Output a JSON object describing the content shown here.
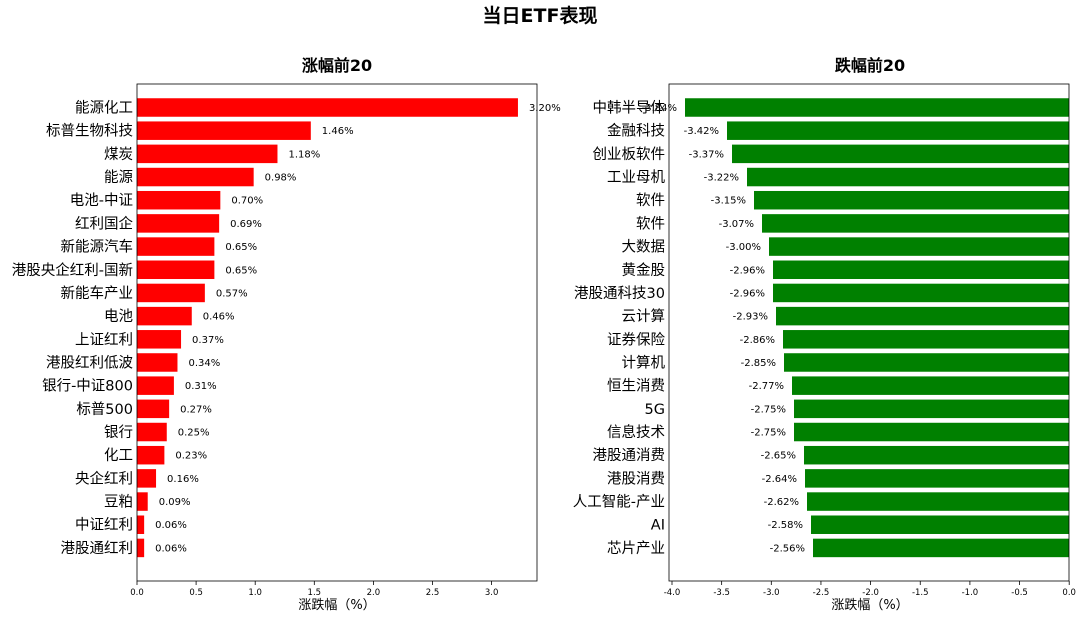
{
  "suptitle": "当日ETF表现",
  "chart_data": [
    {
      "type": "bar",
      "orientation": "horizontal",
      "title": "涨幅前20",
      "xlabel": "涨跌幅（%）",
      "ylabel": "",
      "xlim": [
        0,
        3.36
      ],
      "xticks": [
        "0.0",
        "0.5",
        "1.0",
        "1.5",
        "2.0",
        "2.5",
        "3.0"
      ],
      "bar_color": "#ff0000",
      "grid": false,
      "categories": [
        "能源化工",
        "标普生物科技",
        "煤炭",
        "能源",
        "电池-中证",
        "红利国企",
        "新能源汽车",
        "港股央企红利-国新",
        "新能车产业",
        "电池",
        "上证红利",
        "港股红利低波",
        "银行-中证800",
        "标普500",
        "银行",
        "化工",
        "央企红利",
        "豆粕",
        "中证红利",
        "港股通红利"
      ],
      "values": [
        3.2,
        1.46,
        1.18,
        0.98,
        0.7,
        0.69,
        0.65,
        0.65,
        0.57,
        0.46,
        0.37,
        0.34,
        0.31,
        0.27,
        0.25,
        0.23,
        0.16,
        0.09,
        0.06,
        0.06
      ],
      "data_labels": [
        "3.20%",
        "1.46%",
        "1.18%",
        "0.98%",
        "0.70%",
        "0.69%",
        "0.65%",
        "0.65%",
        "0.57%",
        "0.46%",
        "0.37%",
        "0.34%",
        "0.31%",
        "0.27%",
        "0.25%",
        "0.23%",
        "0.16%",
        "0.09%",
        "0.06%",
        "0.06%"
      ]
    },
    {
      "type": "bar",
      "orientation": "horizontal",
      "title": "跌幅前20",
      "xlabel": "涨跌幅（%）",
      "ylabel": "",
      "xlim": [
        -4.0,
        0.0
      ],
      "xticks": [
        "-4.0",
        "-3.5",
        "-3.0",
        "-2.5",
        "-2.0",
        "-1.5",
        "-1.0",
        "-0.5",
        "0.0"
      ],
      "bar_color": "#008000",
      "grid": false,
      "categories": [
        "中韩半导体",
        "金融科技",
        "创业板软件",
        "工业母机",
        "软件",
        "软件",
        "大数据",
        "黄金股",
        "港股通科技30",
        "云计算",
        "证券保险",
        "计算机",
        "恒生消费",
        "5G",
        "信息技术",
        "港股通消费",
        "港股消费",
        "人工智能-产业",
        "AI",
        "芯片产业"
      ],
      "values": [
        -3.84,
        -3.42,
        -3.37,
        -3.22,
        -3.15,
        -3.07,
        -3.0,
        -2.96,
        -2.96,
        -2.93,
        -2.86,
        -2.85,
        -2.77,
        -2.75,
        -2.75,
        -2.65,
        -2.64,
        -2.62,
        -2.58,
        -2.56
      ],
      "data_labels": [
        "-3.84%",
        "-3.42%",
        "-3.37%",
        "-3.22%",
        "-3.15%",
        "-3.07%",
        "-3.00%",
        "-2.96%",
        "-2.96%",
        "-2.93%",
        "-2.86%",
        "-2.85%",
        "-2.77%",
        "-2.75%",
        "-2.75%",
        "-2.65%",
        "-2.64%",
        "-2.62%",
        "-2.58%",
        "-2.56%"
      ]
    }
  ]
}
